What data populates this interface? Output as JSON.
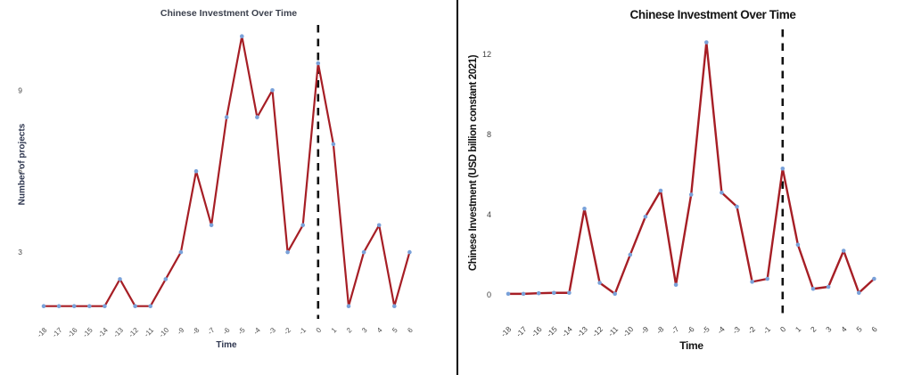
{
  "page": {
    "background": "#ffffff",
    "divider_color": "#000000"
  },
  "chart_data": [
    {
      "type": "line",
      "panel": "left",
      "title": "Chinese Investment Over Time",
      "xlabel": "Time",
      "ylabel": "Number of projects",
      "x": [
        -18,
        -17,
        -16,
        -15,
        -14,
        -13,
        -12,
        -11,
        -10,
        -9,
        -8,
        -7,
        -6,
        -5,
        -4,
        -3,
        -2,
        -1,
        0,
        1,
        2,
        3,
        4,
        5,
        6
      ],
      "values": [
        1,
        1,
        1,
        1,
        1,
        2,
        1,
        1,
        2,
        3,
        6,
        4,
        8,
        11,
        8,
        9,
        3,
        4,
        10,
        7,
        1,
        3,
        4,
        1,
        3
      ],
      "yticks": [
        3,
        6,
        9
      ],
      "ylim": [
        0,
        11.5
      ],
      "xlim": [
        -18,
        6
      ],
      "vline_x": 0,
      "vline_style": "dashed",
      "vline_color": "#111111",
      "line_color": "#A61E25",
      "marker_color": "#79A1D9",
      "grid": false,
      "legend": "none"
    },
    {
      "type": "line",
      "panel": "right",
      "title": "Chinese Investment Over Time",
      "xlabel": "Time",
      "ylabel": "Chinese Investment (USD billion constant 2021)",
      "x": [
        -18,
        -17,
        -16,
        -15,
        -14,
        -13,
        -12,
        -11,
        -10,
        -9,
        -8,
        -7,
        -6,
        -5,
        -4,
        -3,
        -2,
        -1,
        0,
        1,
        2,
        3,
        4,
        5,
        6
      ],
      "values": [
        0.05,
        0.05,
        0.08,
        0.1,
        0.1,
        4.3,
        0.6,
        0.05,
        2.0,
        3.9,
        5.2,
        0.5,
        5.0,
        12.6,
        5.1,
        4.4,
        0.65,
        0.8,
        6.3,
        2.5,
        0.3,
        0.4,
        2.2,
        0.1,
        0.8
      ],
      "yticks": [
        0,
        4,
        8,
        12
      ],
      "ylim": [
        0,
        13.3
      ],
      "xlim": [
        -18,
        6
      ],
      "vline_x": 0,
      "vline_style": "dashed",
      "vline_color": "#111111",
      "line_color": "#A61E25",
      "marker_color": "#79A1D9",
      "grid": false,
      "legend": "none"
    }
  ]
}
